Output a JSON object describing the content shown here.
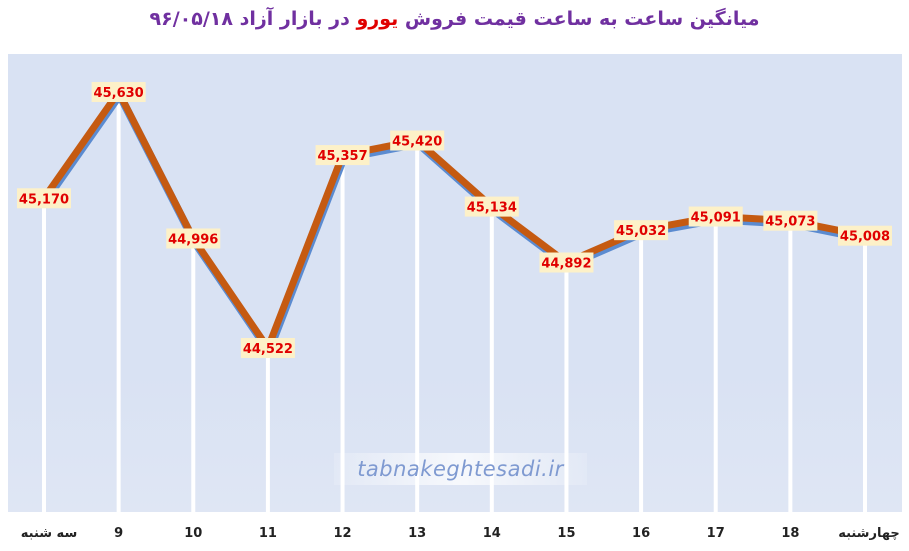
{
  "chart_data": {
    "type": "line",
    "title": {
      "part1": "میانگین ساعت به ساعت قیمت فروش ",
      "highlight": "یورو",
      "part2": " در بازار آزاد ۹۶/۰۵/۱۸"
    },
    "categories": [
      "سه شنبه",
      "9",
      "10",
      "11",
      "12",
      "13",
      "14",
      "15",
      "16",
      "17",
      "18",
      "چهارشنبه"
    ],
    "values": [
      45170,
      45630,
      44996,
      44522,
      45357,
      45420,
      45134,
      44892,
      45032,
      45091,
      45073,
      45008
    ],
    "value_labels": [
      "45,170",
      "45,630",
      "44,996",
      "44,522",
      "45,357",
      "45,420",
      "45,134",
      "44,892",
      "45,032",
      "45,091",
      "45,073",
      "45,008"
    ],
    "ylim": [
      44300,
      45700
    ],
    "grid": false,
    "legend": "none",
    "colors": {
      "line": "#c55a11",
      "shadow": "#5b8bd0",
      "label_bg": "#fdf1c8",
      "label_text": "#e00000",
      "title": "#7030a0",
      "title_highlight": "#e00000",
      "plot_bg": "#d9e2f3"
    }
  },
  "watermark": "tabnakeghtesadi.ir"
}
